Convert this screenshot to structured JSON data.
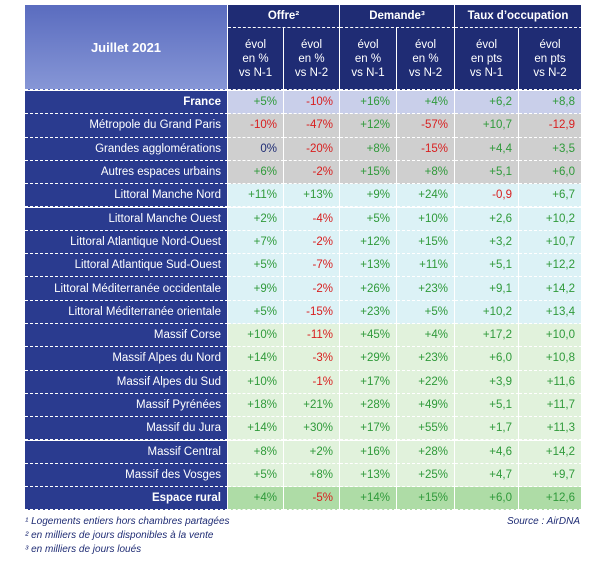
{
  "table": {
    "corner": "Juillet 2021",
    "groups": [
      "Offre²",
      "Demande³",
      "Taux d’occupation"
    ],
    "subheaders": [
      [
        "évol",
        "en %",
        "vs N-1"
      ],
      [
        "évol",
        "en %",
        "vs N-2"
      ],
      [
        "évol",
        "en %",
        "vs N-1"
      ],
      [
        "évol",
        "en %",
        "vs N-2"
      ],
      [
        "évol",
        "en pts",
        "vs N-1"
      ],
      [
        "évol",
        "en pts",
        "vs N-2"
      ]
    ],
    "rows": [
      [
        "France",
        "+5%",
        "-10%",
        "+16%",
        "+4%",
        "+6,2",
        "+8,8"
      ],
      [
        "Métropole du Grand Paris",
        "-10%",
        "-47%",
        "+12%",
        "-57%",
        "+10,7",
        "-12,9"
      ],
      [
        "Grandes agglomérations",
        "0%",
        "-20%",
        "+8%",
        "-15%",
        "+4,4",
        "+3,5"
      ],
      [
        "Autres espaces urbains",
        "+6%",
        "-2%",
        "+15%",
        "+8%",
        "+5,1",
        "+6,0"
      ],
      [
        "Littoral Manche Nord",
        "+11%",
        "+13%",
        "+9%",
        "+24%",
        "-0,9",
        "+6,7"
      ],
      [
        "Littoral Manche Ouest",
        "+2%",
        "-4%",
        "+5%",
        "+10%",
        "+2,6",
        "+10,2"
      ],
      [
        "Littoral Atlantique Nord-Ouest",
        "+7%",
        "-2%",
        "+12%",
        "+15%",
        "+3,2",
        "+10,7"
      ],
      [
        "Littoral Atlantique Sud-Ouest",
        "+5%",
        "-7%",
        "+13%",
        "+11%",
        "+5,1",
        "+12,2"
      ],
      [
        "Littoral Méditerranée occidentale",
        "+9%",
        "-2%",
        "+26%",
        "+23%",
        "+9,1",
        "+14,2"
      ],
      [
        "Littoral Méditerranée orientale",
        "+5%",
        "-15%",
        "+23%",
        "+5%",
        "+10,2",
        "+13,4"
      ],
      [
        "Massif Corse",
        "+10%",
        "-11%",
        "+45%",
        "+4%",
        "+17,2",
        "+10,0"
      ],
      [
        "Massif Alpes du Nord",
        "+14%",
        "-3%",
        "+29%",
        "+23%",
        "+6,0",
        "+10,8"
      ],
      [
        "Massif Alpes du Sud",
        "+10%",
        "-1%",
        "+17%",
        "+22%",
        "+3,9",
        "+11,6"
      ],
      [
        "Massif Pyrénées",
        "+18%",
        "+21%",
        "+28%",
        "+49%",
        "+5,1",
        "+11,7"
      ],
      [
        "Massif du Jura",
        "+14%",
        "+30%",
        "+17%",
        "+55%",
        "+1,7",
        "+11,3"
      ],
      [
        "Massif Central",
        "+8%",
        "+2%",
        "+16%",
        "+28%",
        "+4,6",
        "+14,2"
      ],
      [
        "Massif des Vosges",
        "+5%",
        "+8%",
        "+13%",
        "+25%",
        "+4,7",
        "+9,7"
      ],
      [
        "Espace rural",
        "+4%",
        "-5%",
        "+14%",
        "+15%",
        "+6,0",
        "+12,6"
      ]
    ]
  },
  "footnotes": [
    "¹ Logements entiers hors chambres partagées",
    "² en milliers de jours disponibles à la vente",
    "³ en milliers de jours loués"
  ],
  "source": "Source : AirDNA"
}
